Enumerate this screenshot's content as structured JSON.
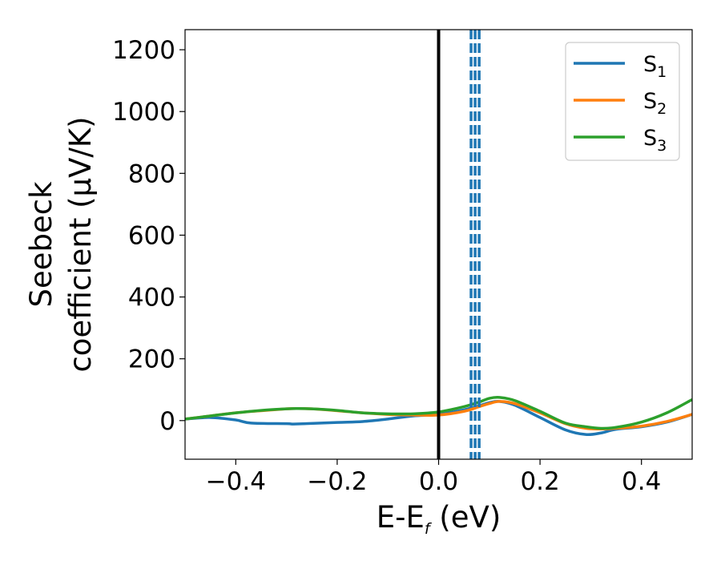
{
  "chart_data": {
    "type": "line",
    "xlabel": {
      "main": "E-E",
      "sub": "f",
      "suffix": " (eV)"
    },
    "ylabel": {
      "line1": "Seebeck",
      "line2": "coefficient  (μV/K)"
    },
    "xlim": [
      -0.5,
      0.5
    ],
    "ylim": [
      -125,
      1265
    ],
    "xticks": [
      -0.4,
      -0.2,
      0.0,
      0.2,
      0.4
    ],
    "xtick_labels": [
      "−0.4",
      "−0.2",
      "0.0",
      "0.2",
      "0.4"
    ],
    "yticks": [
      0,
      200,
      400,
      600,
      800,
      1000,
      1200
    ],
    "ytick_labels": [
      "0",
      "200",
      "400",
      "600",
      "800",
      "1000",
      "1200"
    ],
    "grid": false,
    "legend_position": "top-right",
    "series": [
      {
        "name": "S",
        "sub": "1",
        "color": "#1f77b4",
        "points": [
          [
            -0.5,
            5
          ],
          [
            -0.45,
            10
          ],
          [
            -0.4,
            2
          ],
          [
            -0.37,
            -8
          ],
          [
            -0.3,
            -10
          ],
          [
            -0.28,
            -11
          ],
          [
            -0.2,
            -6
          ],
          [
            -0.15,
            -3
          ],
          [
            -0.1,
            5
          ],
          [
            -0.05,
            15
          ],
          [
            0.0,
            20
          ],
          [
            0.05,
            35
          ],
          [
            0.08,
            48
          ],
          [
            0.1,
            58
          ],
          [
            0.12,
            62
          ],
          [
            0.15,
            50
          ],
          [
            0.2,
            10
          ],
          [
            0.25,
            -30
          ],
          [
            0.29,
            -45
          ],
          [
            0.32,
            -40
          ],
          [
            0.35,
            -28
          ],
          [
            0.4,
            -20
          ],
          [
            0.45,
            -5
          ],
          [
            0.5,
            20
          ]
        ]
      },
      {
        "name": "S",
        "sub": "2",
        "color": "#ff7f0e",
        "points": [
          [
            -0.5,
            5
          ],
          [
            -0.45,
            15
          ],
          [
            -0.4,
            25
          ],
          [
            -0.35,
            32
          ],
          [
            -0.3,
            38
          ],
          [
            -0.28,
            39
          ],
          [
            -0.25,
            38
          ],
          [
            -0.2,
            32
          ],
          [
            -0.15,
            25
          ],
          [
            -0.1,
            20
          ],
          [
            -0.05,
            18
          ],
          [
            0.0,
            18
          ],
          [
            0.05,
            30
          ],
          [
            0.08,
            45
          ],
          [
            0.1,
            55
          ],
          [
            0.12,
            62
          ],
          [
            0.15,
            55
          ],
          [
            0.2,
            25
          ],
          [
            0.25,
            -10
          ],
          [
            0.29,
            -25
          ],
          [
            0.32,
            -27
          ],
          [
            0.35,
            -25
          ],
          [
            0.4,
            -18
          ],
          [
            0.45,
            -3
          ],
          [
            0.5,
            20
          ]
        ]
      },
      {
        "name": "S",
        "sub": "3",
        "color": "#2ca02c",
        "points": [
          [
            -0.5,
            5
          ],
          [
            -0.45,
            15
          ],
          [
            -0.4,
            25
          ],
          [
            -0.35,
            33
          ],
          [
            -0.3,
            38
          ],
          [
            -0.28,
            39
          ],
          [
            -0.25,
            38
          ],
          [
            -0.2,
            33
          ],
          [
            -0.15,
            25
          ],
          [
            -0.1,
            22
          ],
          [
            -0.05,
            22
          ],
          [
            0.0,
            28
          ],
          [
            0.05,
            45
          ],
          [
            0.08,
            60
          ],
          [
            0.1,
            72
          ],
          [
            0.12,
            75
          ],
          [
            0.15,
            65
          ],
          [
            0.2,
            30
          ],
          [
            0.25,
            -8
          ],
          [
            0.29,
            -20
          ],
          [
            0.32,
            -25
          ],
          [
            0.35,
            -22
          ],
          [
            0.4,
            -5
          ],
          [
            0.45,
            25
          ],
          [
            0.5,
            68
          ]
        ]
      }
    ],
    "vertical_lines": [
      {
        "x": 0.0,
        "style": "solid",
        "color": "#000000"
      },
      {
        "x": 0.064,
        "style": "dashed",
        "color": "#1f77b4"
      },
      {
        "x": 0.072,
        "style": "dashed",
        "color": "#1f77b4"
      },
      {
        "x": 0.08,
        "style": "dashed",
        "color": "#1f77b4"
      }
    ]
  }
}
